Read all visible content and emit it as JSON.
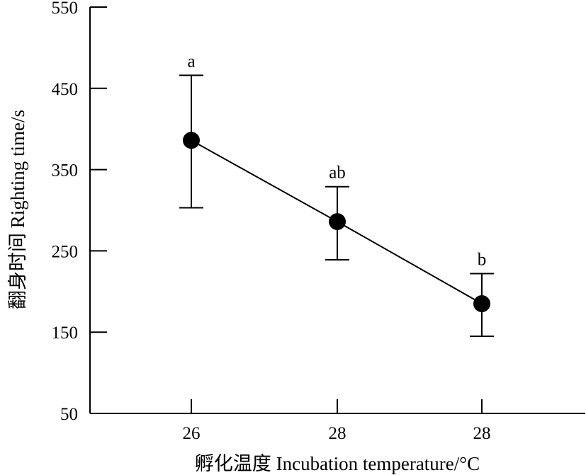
{
  "chart_data": {
    "type": "line",
    "title": "",
    "xlabel": "孵化温度 Incubation temperature/°C",
    "ylabel": "翻身时间 Righting time/s",
    "categories": [
      "26",
      "28",
      "28"
    ],
    "series": [
      {
        "values": [
          386,
          286,
          185
        ],
        "error_upper": [
          466,
          329,
          222
        ],
        "error_lower": [
          303,
          239,
          145
        ],
        "significance": [
          "a",
          "ab",
          "b"
        ]
      }
    ],
    "ylim": [
      50,
      550
    ],
    "yticks": [
      50,
      150,
      250,
      350,
      450,
      550
    ],
    "grid": false,
    "legend": "none",
    "colors": {
      "line": "#000000",
      "marker": "#000000"
    }
  }
}
